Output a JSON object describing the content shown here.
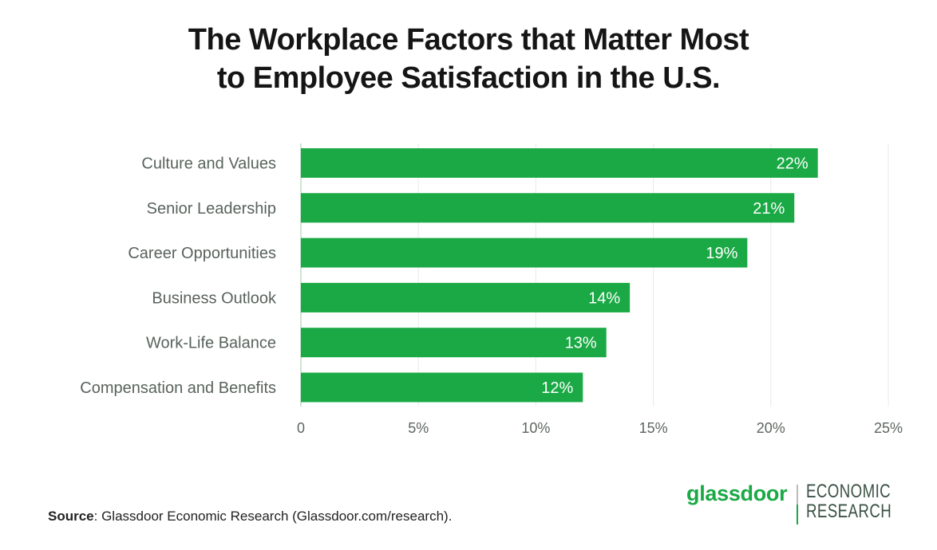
{
  "title_lines": [
    "The Workplace Factors that Matter Most",
    "to Employee Satisfaction in the U.S."
  ],
  "source": {
    "label": "Source",
    "text": ": Glassdoor Economic Research (Glassdoor.com/research)."
  },
  "logo": {
    "brand": "glassdoor",
    "line1": "ECONOMIC",
    "line2": "RESEARCH",
    "brand_color": "#1aa945"
  },
  "colors": {
    "bar": "#1aa945",
    "gridline": "#e3ece6",
    "axis": "#cfe3d6"
  },
  "chart_data": {
    "type": "bar",
    "orientation": "horizontal",
    "title": "The Workplace Factors that Matter Most to Employee Satisfaction in the U.S.",
    "xlabel": "",
    "ylabel": "",
    "categories": [
      "Culture and Values",
      "Senior Leadership",
      "Career Opportunities",
      "Business Outlook",
      "Work-Life Balance",
      "Compensation and Benefits"
    ],
    "values": [
      22,
      21,
      19,
      14,
      13,
      12
    ],
    "value_labels": [
      "22%",
      "21%",
      "19%",
      "14%",
      "13%",
      "12%"
    ],
    "unit": "%",
    "xlim": [
      0,
      25
    ],
    "x_ticks": [
      0,
      5,
      10,
      15,
      20,
      25
    ],
    "x_tick_labels": [
      "0",
      "5%",
      "10%",
      "15%",
      "20%",
      "25%"
    ],
    "grid": true,
    "legend": "none"
  }
}
